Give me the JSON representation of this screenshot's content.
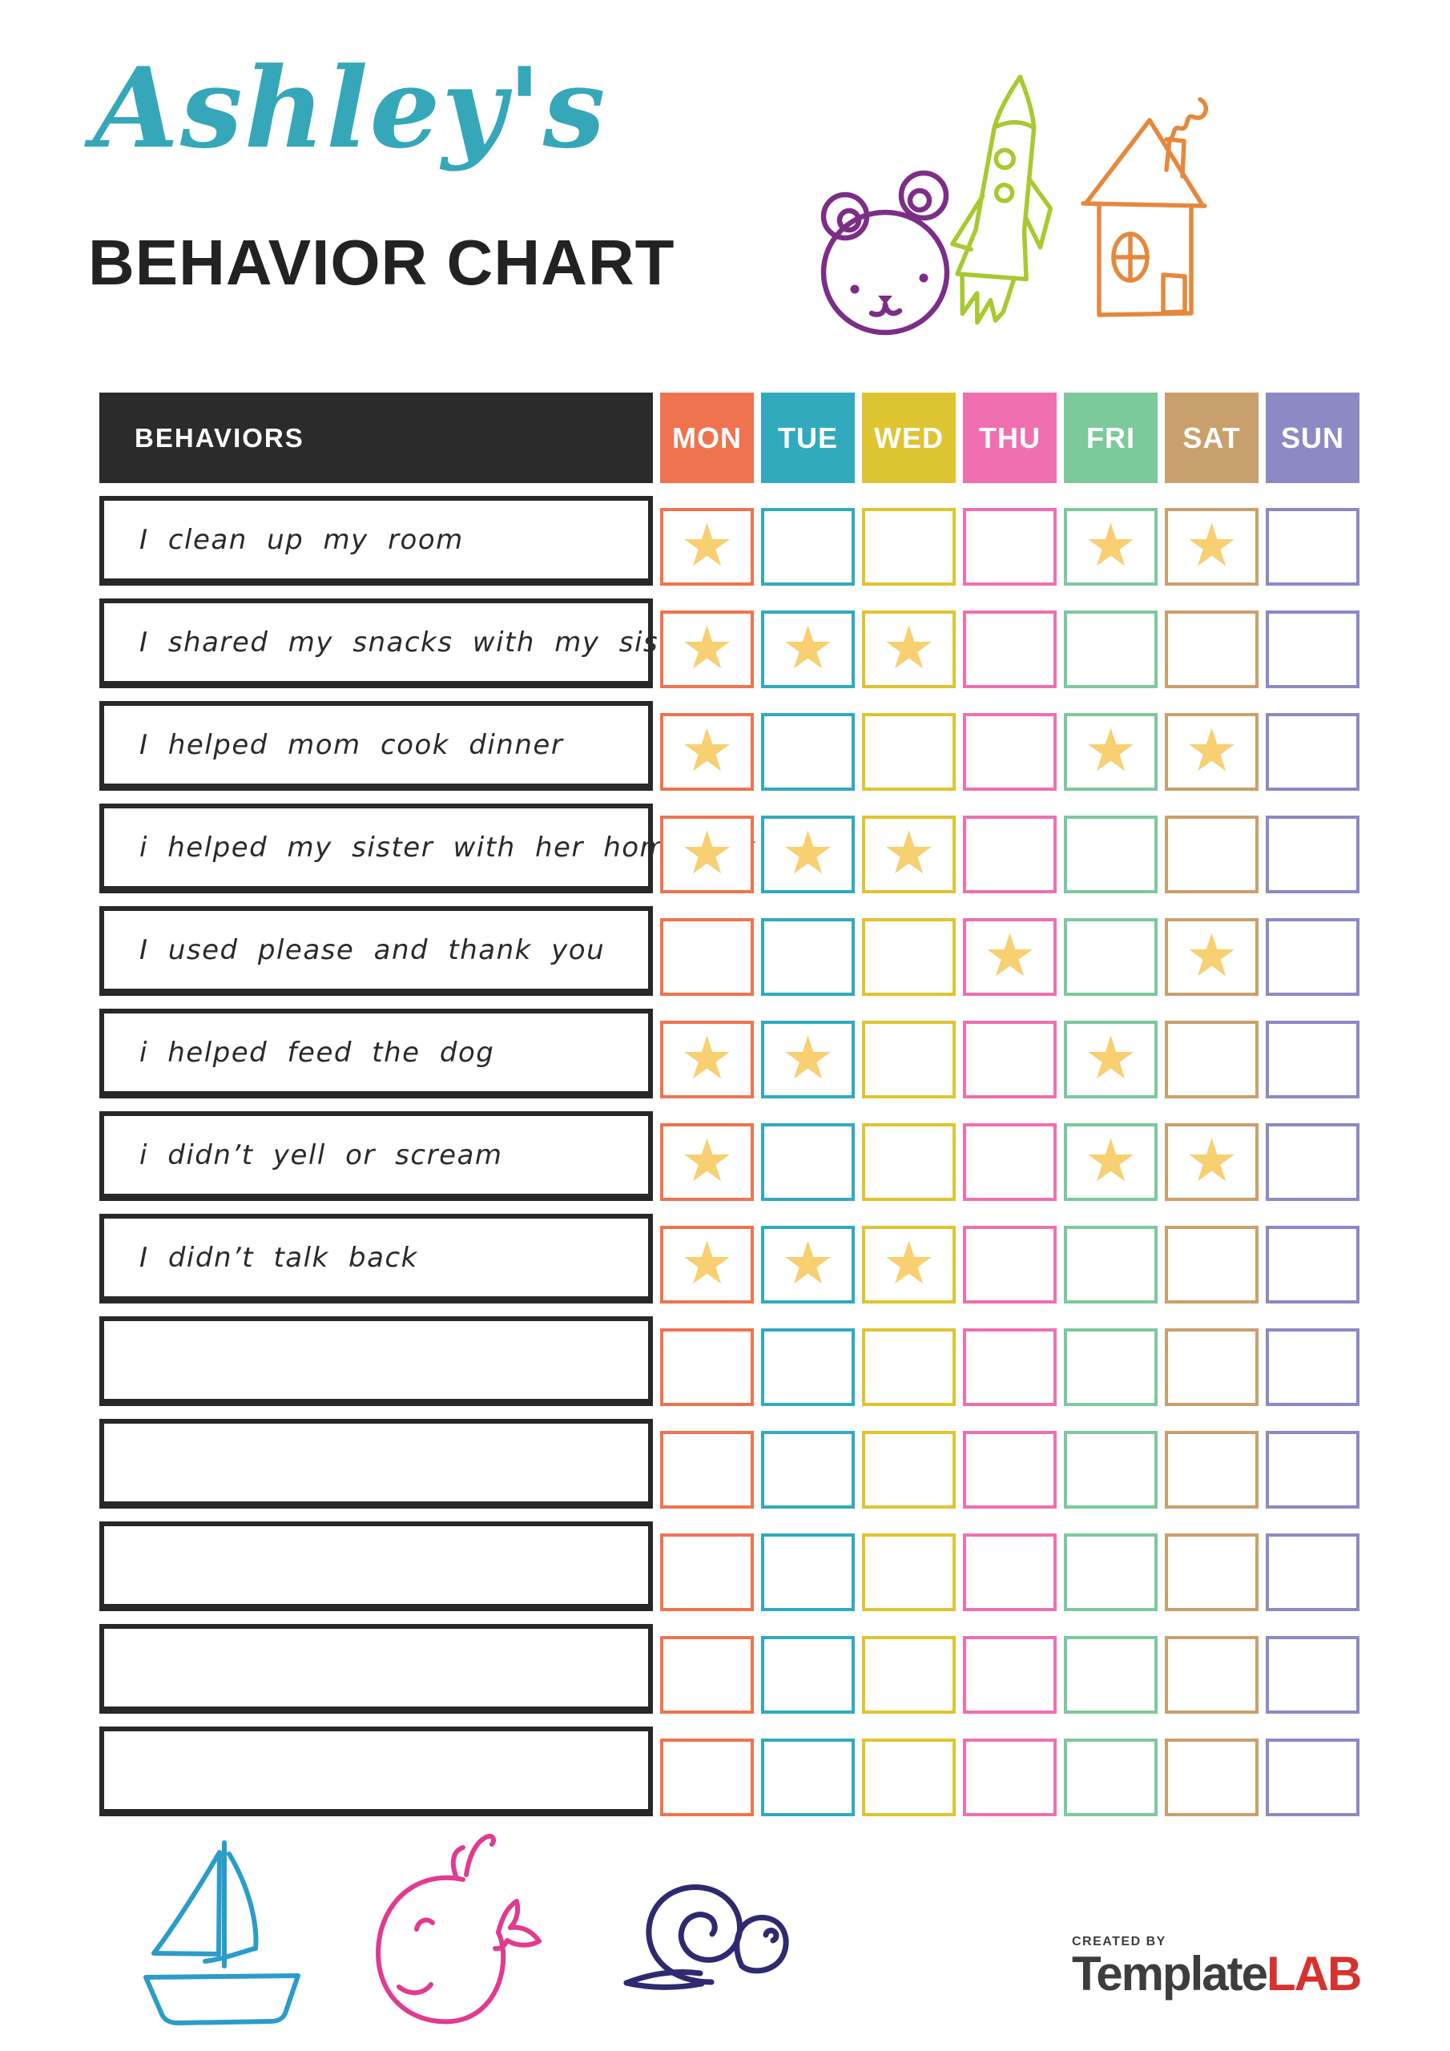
{
  "header": {
    "owner_name": "Ashley's",
    "title": "BEHAVIOR CHART"
  },
  "table": {
    "behaviors_label": "BEHAVIORS",
    "days": [
      {
        "label": "MON",
        "color": "#F0734F"
      },
      {
        "label": "TUE",
        "color": "#31AABE"
      },
      {
        "label": "WED",
        "color": "#DFC431"
      },
      {
        "label": "THU",
        "color": "#F06FB0"
      },
      {
        "label": "FRI",
        "color": "#7CC99C"
      },
      {
        "label": "SAT",
        "color": "#C9A06B"
      },
      {
        "label": "SUN",
        "color": "#8D89C4"
      }
    ],
    "rows": [
      {
        "behavior": "I clean up my room",
        "stars": [
          1,
          0,
          0,
          0,
          1,
          1,
          0
        ]
      },
      {
        "behavior": "I shared my snacks with my sister",
        "stars": [
          1,
          1,
          1,
          0,
          0,
          0,
          0
        ]
      },
      {
        "behavior": "I helped mom cook dinner",
        "stars": [
          1,
          0,
          0,
          0,
          1,
          1,
          0
        ]
      },
      {
        "behavior": "i helped my sister with her homework",
        "stars": [
          1,
          1,
          1,
          0,
          0,
          0,
          0
        ]
      },
      {
        "behavior": "I used please and thank you",
        "stars": [
          0,
          0,
          0,
          1,
          0,
          1,
          0
        ]
      },
      {
        "behavior": "i helped feed the dog",
        "stars": [
          1,
          1,
          0,
          0,
          1,
          0,
          0
        ]
      },
      {
        "behavior": "i didn’t yell or scream",
        "stars": [
          1,
          0,
          0,
          0,
          1,
          1,
          0
        ]
      },
      {
        "behavior": "I didn’t talk back",
        "stars": [
          1,
          1,
          1,
          0,
          0,
          0,
          0
        ]
      },
      {
        "behavior": "",
        "stars": [
          0,
          0,
          0,
          0,
          0,
          0,
          0
        ]
      },
      {
        "behavior": "",
        "stars": [
          0,
          0,
          0,
          0,
          0,
          0,
          0
        ]
      },
      {
        "behavior": "",
        "stars": [
          0,
          0,
          0,
          0,
          0,
          0,
          0
        ]
      },
      {
        "behavior": "",
        "stars": [
          0,
          0,
          0,
          0,
          0,
          0,
          0
        ]
      },
      {
        "behavior": "",
        "stars": [
          0,
          0,
          0,
          0,
          0,
          0,
          0
        ]
      }
    ],
    "star_glyph": "★",
    "star_color": "#F8CF71"
  },
  "footer": {
    "logo": {
      "created_by": "CREATED BY",
      "brand": "Template",
      "brand_accent": "LAB"
    }
  },
  "colors": {
    "owner_name": "#35A7B9",
    "title": "#222222",
    "bear": "#7C2E87",
    "rocket": "#A8C92F",
    "house": "#E6883C",
    "sailboat": "#2B9CC9",
    "whale": "#E13A8E",
    "snail": "#2F2A6F",
    "logo_dark": "#3D3D3D",
    "logo_red": "#D63230"
  }
}
